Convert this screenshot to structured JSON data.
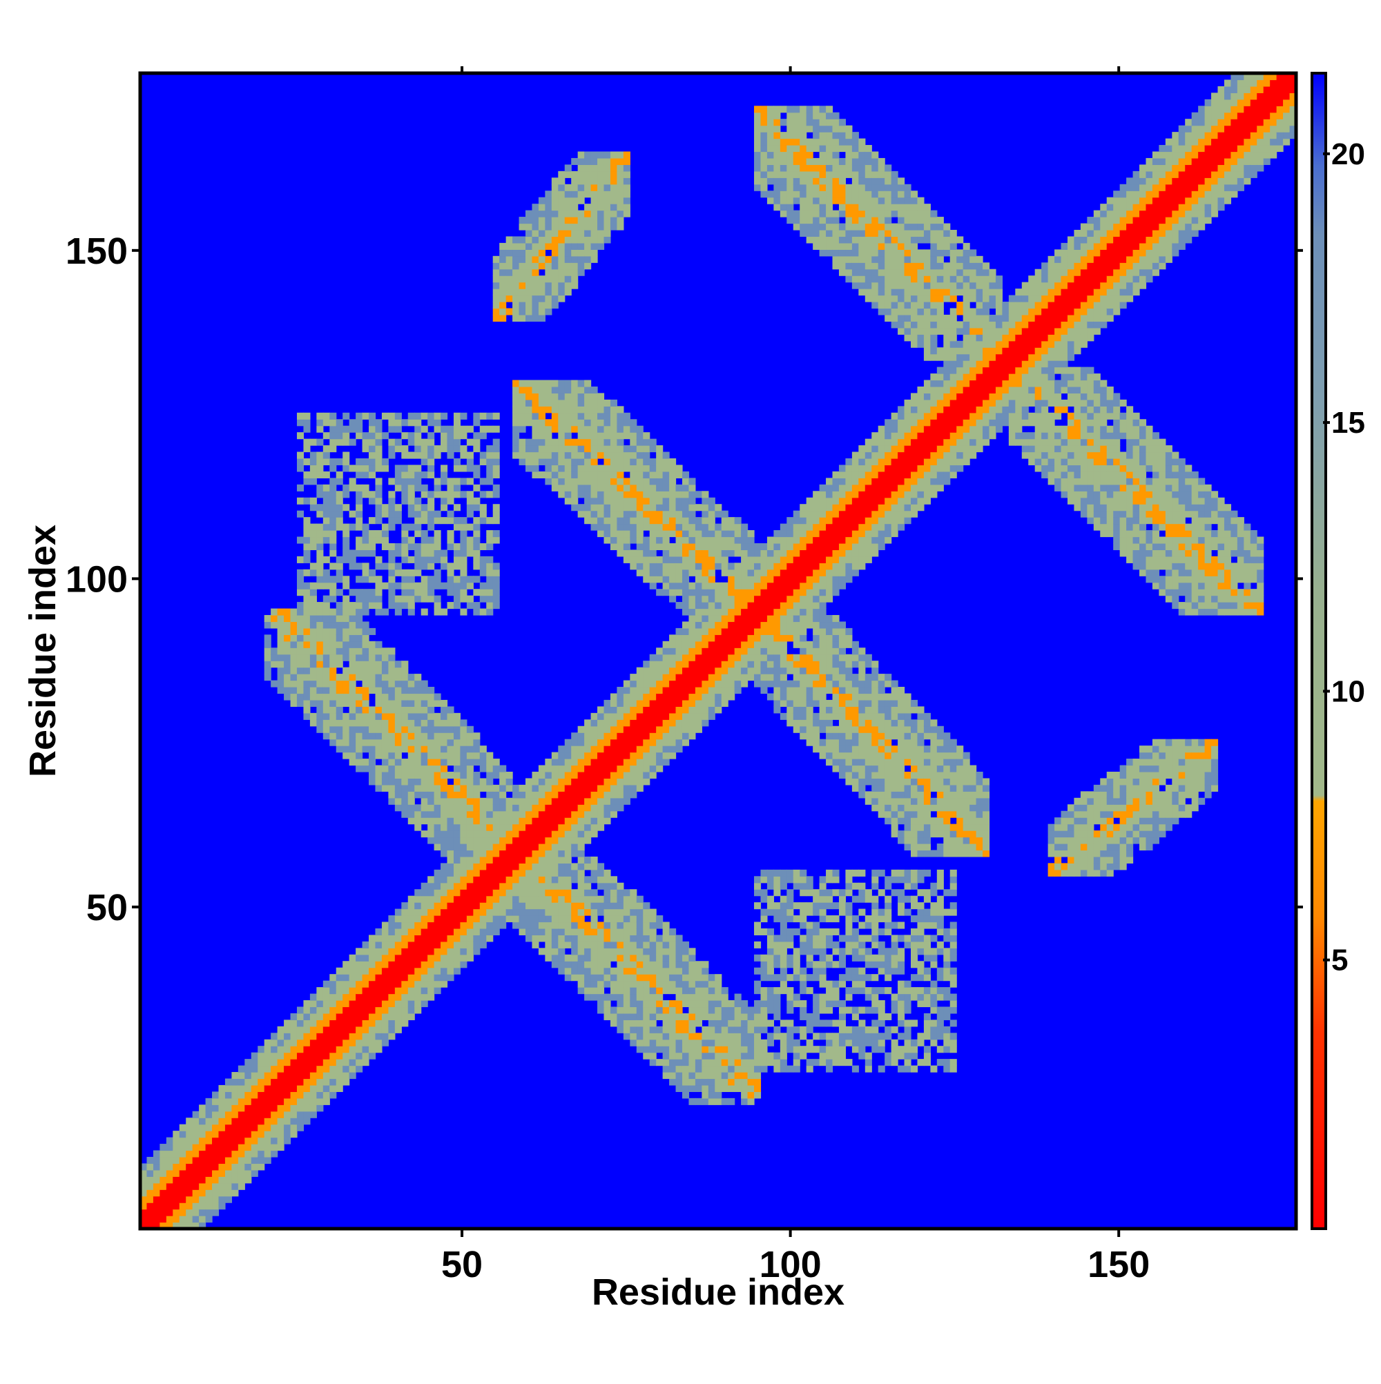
{
  "chart_data": {
    "type": "heatmap",
    "title": "",
    "xlabel": "Residue index",
    "ylabel": "Residue index",
    "xlim": [
      1,
      177
    ],
    "ylim": [
      1,
      177
    ],
    "xticks": [
      50,
      100,
      150
    ],
    "yticks": [
      50,
      100,
      150
    ],
    "n_residues": 177,
    "colorbar": {
      "ticks": [
        5,
        10,
        15,
        20
      ],
      "range": [
        0,
        21.5
      ],
      "colors": {
        "low": "#ff0000",
        "orange": "#ff9900",
        "khaki": "#a2b98a",
        "slate": "#6d8fb8",
        "background": "#0000ff"
      }
    },
    "structure": {
      "diagonal": "symmetric contact map, red main diagonal (distance < 5) with orange and green-grey flanking band",
      "off_diagonal_contact_regions": [
        {
          "x_range": [
            20,
            55
          ],
          "y_range": [
            62,
            95
          ],
          "direction": "anti"
        },
        {
          "x_range": [
            58,
            95
          ],
          "y_range": [
            22,
            58
          ],
          "direction": "anti"
        },
        {
          "x_range": [
            58,
            95
          ],
          "y_range": [
            95,
            130
          ],
          "direction": "anti"
        },
        {
          "x_range": [
            95,
            130
          ],
          "y_range": [
            58,
            95
          ],
          "direction": "anti"
        },
        {
          "x_range": [
            95,
            132
          ],
          "y_range": [
            134,
            172
          ],
          "direction": "anti"
        },
        {
          "x_range": [
            134,
            172
          ],
          "y_range": [
            95,
            132
          ],
          "direction": "anti"
        },
        {
          "x_range": [
            55,
            75
          ],
          "y_range": [
            140,
            165
          ],
          "direction": "parallel"
        },
        {
          "x_range": [
            140,
            165
          ],
          "y_range": [
            55,
            75
          ],
          "direction": "parallel"
        },
        {
          "x_range": [
            25,
            55
          ],
          "y_range": [
            95,
            125
          ],
          "direction": "sparse"
        },
        {
          "x_range": [
            95,
            125
          ],
          "y_range": [
            25,
            55
          ],
          "direction": "sparse"
        }
      ]
    }
  }
}
